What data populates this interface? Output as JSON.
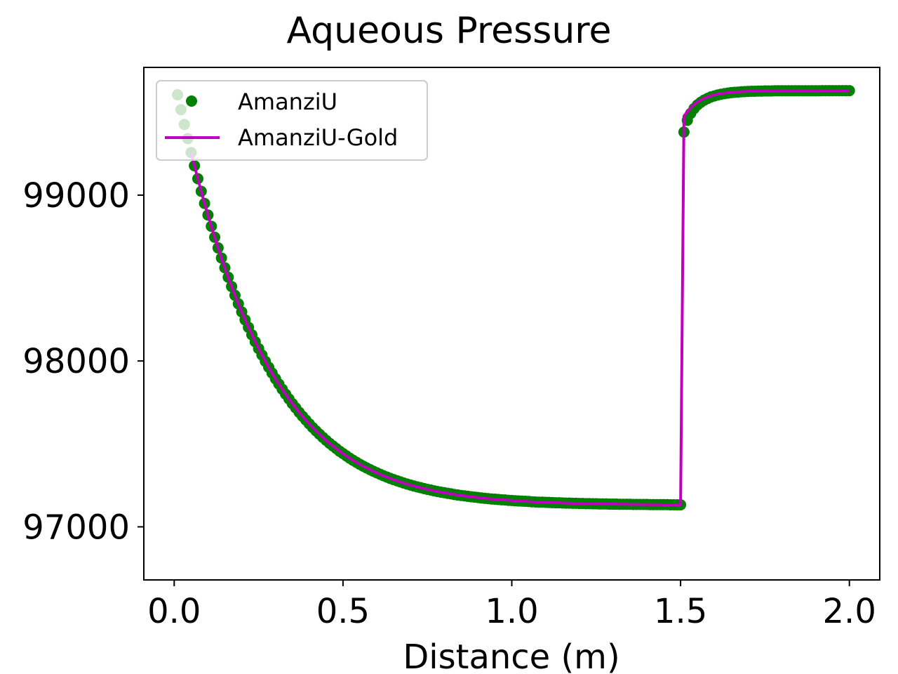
{
  "chart_data": {
    "type": "line",
    "title": "Aqueous Pressure",
    "xlabel": "Distance (m)",
    "ylabel": "",
    "xlim": [
      -0.09,
      2.09
    ],
    "ylim": [
      96680,
      99770
    ],
    "xticks": [
      0.0,
      0.5,
      1.0,
      1.5,
      2.0
    ],
    "xtick_labels": [
      "0.0",
      "0.5",
      "1.0",
      "1.5",
      "2.0"
    ],
    "yticks": [
      97000,
      98000,
      99000
    ],
    "ytick_labels": [
      "97000",
      "98000",
      "99000"
    ],
    "grid": false,
    "legend": {
      "location": "top-left",
      "entries": [
        {
          "label": "AmanziU",
          "marker": "circle",
          "color": "#008000"
        },
        {
          "label": "AmanziU-Gold",
          "marker": "line",
          "color": "#bf00bf"
        }
      ]
    },
    "series": [
      {
        "name": "AmanziU",
        "style": "scatter",
        "color": "#008000",
        "x": [
          0.01,
          0.02,
          0.03,
          0.04,
          0.05,
          0.06,
          0.07,
          0.08,
          0.09,
          0.1,
          0.11,
          0.12,
          0.13,
          0.14,
          0.15,
          0.16,
          0.17,
          0.18,
          0.19,
          0.2,
          0.21,
          0.22,
          0.23,
          0.24,
          0.25,
          0.26,
          0.27,
          0.28,
          0.29,
          0.3,
          0.31,
          0.32,
          0.33,
          0.34,
          0.35,
          0.36,
          0.37,
          0.38,
          0.39,
          0.4,
          0.41,
          0.42,
          0.43,
          0.44,
          0.45,
          0.46,
          0.47,
          0.48,
          0.49,
          0.5,
          0.51,
          0.52,
          0.53,
          0.54,
          0.55,
          0.56,
          0.57,
          0.58,
          0.59,
          0.6,
          0.61,
          0.62,
          0.63,
          0.64,
          0.65,
          0.66,
          0.67,
          0.68,
          0.69,
          0.7,
          0.71,
          0.72,
          0.73,
          0.74,
          0.75,
          0.76,
          0.77,
          0.78,
          0.79,
          0.8,
          0.81,
          0.82,
          0.83,
          0.84,
          0.85,
          0.86,
          0.87,
          0.88,
          0.89,
          0.9,
          0.91,
          0.92,
          0.93,
          0.94,
          0.95,
          0.96,
          0.97,
          0.98,
          0.99,
          1.0,
          1.01,
          1.02,
          1.03,
          1.04,
          1.05,
          1.06,
          1.07,
          1.08,
          1.09,
          1.1,
          1.11,
          1.12,
          1.13,
          1.14,
          1.15,
          1.16,
          1.17,
          1.18,
          1.19,
          1.2,
          1.21,
          1.22,
          1.23,
          1.24,
          1.25,
          1.26,
          1.27,
          1.28,
          1.29,
          1.3,
          1.31,
          1.32,
          1.33,
          1.34,
          1.35,
          1.36,
          1.37,
          1.38,
          1.39,
          1.4,
          1.41,
          1.42,
          1.43,
          1.44,
          1.45,
          1.46,
          1.47,
          1.48,
          1.49,
          1.5,
          1.51,
          1.52,
          1.53,
          1.54,
          1.55,
          1.56,
          1.57,
          1.58,
          1.59,
          1.6,
          1.61,
          1.62,
          1.63,
          1.64,
          1.65,
          1.66,
          1.67,
          1.68,
          1.69,
          1.7,
          1.71,
          1.72,
          1.73,
          1.74,
          1.75,
          1.76,
          1.77,
          1.78,
          1.79,
          1.8,
          1.81,
          1.82,
          1.83,
          1.84,
          1.85,
          1.86,
          1.87,
          1.88,
          1.89,
          1.9,
          1.91,
          1.92,
          1.93,
          1.94,
          1.95,
          1.96,
          1.97,
          1.98,
          1.99,
          2.0
        ],
        "y": [
          99605,
          99515,
          99426,
          99341,
          99257,
          99177,
          99099,
          99023,
          98950,
          98880,
          98812,
          98746,
          98682,
          98621,
          98562,
          98505,
          98449,
          98396,
          98345,
          98296,
          98248,
          98203,
          98158,
          98116,
          98075,
          98036,
          97998,
          97962,
          97927,
          97893,
          97861,
          97830,
          97800,
          97771,
          97743,
          97717,
          97691,
          97667,
          97644,
          97621,
          97599,
          97579,
          97559,
          97540,
          97522,
          97504,
          97488,
          97472,
          97456,
          97442,
          97428,
          97414,
          97401,
          97389,
          97377,
          97366,
          97355,
          97345,
          97335,
          97326,
          97317,
          97308,
          97300,
          97292,
          97285,
          97278,
          97271,
          97264,
          97258,
          97252,
          97246,
          97241,
          97236,
          97231,
          97226,
          97222,
          97217,
          97213,
          97209,
          97206,
          97202,
          97199,
          97195,
          97192,
          97189,
          97187,
          97184,
          97181,
          97179,
          97177,
          97174,
          97172,
          97170,
          97168,
          97167,
          97165,
          97163,
          97162,
          97160,
          97159,
          97157,
          97156,
          97155,
          97154,
          97153,
          97151,
          97150,
          97149,
          97149,
          97148,
          97147,
          97146,
          97145,
          97145,
          97144,
          97143,
          97143,
          97142,
          97142,
          97141,
          97141,
          97140,
          97140,
          97139,
          97139,
          97138,
          97138,
          97138,
          97137,
          97137,
          97137,
          97136,
          97136,
          97136,
          97136,
          97135,
          97135,
          97135,
          97135,
          97135,
          97134,
          97134,
          97134,
          97134,
          97134,
          97134,
          97133,
          97133,
          97133,
          97133,
          99380,
          99451,
          99493,
          99522,
          99544,
          99560,
          99573,
          99583,
          99592,
          99598,
          99604,
          99608,
          99612,
          99615,
          99618,
          99620,
          99621,
          99623,
          99624,
          99625,
          99626,
          99626,
          99627,
          99627,
          99628,
          99628,
          99628,
          99629,
          99629,
          99629,
          99629,
          99629,
          99629,
          99629,
          99629,
          99629,
          99629,
          99629,
          99629,
          99629,
          99629,
          99630,
          99630,
          99630,
          99630,
          99630,
          99630,
          99630,
          99630,
          99630
        ]
      },
      {
        "name": "AmanziU-Gold",
        "style": "line",
        "color": "#bf00bf",
        "x": [
          0.05,
          0.06,
          0.07,
          0.08,
          0.09,
          0.1,
          0.11,
          0.12,
          0.13,
          0.14,
          0.15,
          0.16,
          0.17,
          0.18,
          0.19,
          0.2,
          0.22,
          0.24,
          0.26,
          0.28,
          0.3,
          0.32,
          0.34,
          0.36,
          0.38,
          0.4,
          0.42,
          0.44,
          0.46,
          0.48,
          0.5,
          0.52,
          0.54,
          0.56,
          0.58,
          0.6,
          0.62,
          0.64,
          0.66,
          0.68,
          0.7,
          0.72,
          0.74,
          0.76,
          0.78,
          0.8,
          0.82,
          0.84,
          0.86,
          0.88,
          0.9,
          0.92,
          0.94,
          0.96,
          0.98,
          1.0,
          1.02,
          1.04,
          1.06,
          1.08,
          1.1,
          1.12,
          1.14,
          1.16,
          1.18,
          1.2,
          1.22,
          1.24,
          1.26,
          1.28,
          1.3,
          1.32,
          1.34,
          1.36,
          1.38,
          1.4,
          1.42,
          1.44,
          1.46,
          1.48,
          1.49,
          1.5,
          1.51,
          1.52,
          1.53,
          1.54,
          1.55,
          1.56,
          1.57,
          1.58,
          1.59,
          1.6,
          1.61,
          1.62,
          1.63,
          1.64,
          1.65,
          1.66,
          1.67,
          1.68,
          1.69,
          1.7,
          1.72,
          1.74,
          1.76,
          1.78,
          1.8,
          1.82,
          1.84,
          1.86,
          1.88,
          1.9,
          1.92,
          1.94,
          1.96,
          1.98,
          2.0
        ],
        "y": [
          99257,
          99177,
          99099,
          99023,
          98950,
          98880,
          98812,
          98746,
          98682,
          98621,
          98562,
          98505,
          98449,
          98396,
          98345,
          98296,
          98203,
          98116,
          98036,
          97962,
          97893,
          97830,
          97771,
          97717,
          97667,
          97621,
          97579,
          97540,
          97504,
          97472,
          97442,
          97414,
          97389,
          97366,
          97345,
          97326,
          97308,
          97292,
          97278,
          97264,
          97252,
          97241,
          97231,
          97222,
          97213,
          97206,
          97199,
          97192,
          97187,
          97181,
          97177,
          97172,
          97168,
          97165,
          97162,
          97159,
          97156,
          97154,
          97151,
          97149,
          97148,
          97146,
          97145,
          97143,
          97142,
          97141,
          97140,
          97139,
          97138,
          97138,
          97137,
          97136,
          97136,
          97135,
          97135,
          97134,
          97134,
          97134,
          97133,
          97133,
          97133,
          97133,
          99477,
          99502,
          99527,
          99545,
          99560,
          99573,
          99583,
          99592,
          99598,
          99604,
          99608,
          99612,
          99615,
          99618,
          99620,
          99621,
          99623,
          99624,
          99625,
          99626,
          99627,
          99628,
          99628,
          99629,
          99629,
          99629,
          99629,
          99629,
          99629,
          99630,
          99630,
          99630,
          99630,
          99630,
          99630
        ]
      }
    ]
  }
}
